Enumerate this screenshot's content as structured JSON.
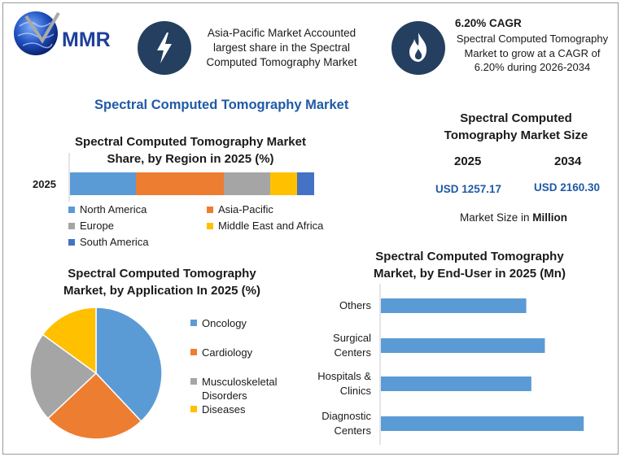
{
  "logo": {
    "text": "MMR"
  },
  "banner": {
    "asia_text_lines": [
      "Asia-Pacific Market Accounted",
      "largest share in the Spectral",
      "Computed Tomography Market"
    ],
    "cagr_title": "6.20% CAGR",
    "cagr_text_lines": [
      "Spectral Computed Tomography",
      "Market to grow at a CAGR of",
      "6.20% during 2026-2034"
    ]
  },
  "main_title": "Spectral Computed Tomography Market",
  "market_size": {
    "title_lines": [
      "Spectral Computed",
      "Tomography Market Size"
    ],
    "year_a": "2025",
    "year_b": "2034",
    "value_a": "USD 1257.17",
    "value_b": "USD 2160.30",
    "unit_note_prefix": "Market Size in ",
    "unit_note_bold": "Million"
  },
  "chart_data": [
    {
      "type": "bar",
      "orientation": "horizontal-stacked",
      "title": "Spectral Computed Tomography Market Share, by Region in 2025 (%)",
      "categories": [
        "2025"
      ],
      "series": [
        {
          "name": "North America",
          "values": [
            27
          ],
          "color": "#5b9bd5"
        },
        {
          "name": "Asia-Pacific",
          "values": [
            36
          ],
          "color": "#ed7d31"
        },
        {
          "name": "Europe",
          "values": [
            19
          ],
          "color": "#a5a5a5"
        },
        {
          "name": "Middle East and Africa",
          "values": [
            11
          ],
          "color": "#ffc000"
        },
        {
          "name": "South America",
          "values": [
            7
          ],
          "color": "#4472c4"
        }
      ],
      "xlim": [
        0,
        100
      ],
      "legend_position": "bottom"
    },
    {
      "type": "pie",
      "title": "Spectral Computed Tomography Market, by Application In 2025 (%)",
      "slices": [
        {
          "name": "Oncology",
          "value": 38,
          "color": "#5b9bd5"
        },
        {
          "name": "Cardiology",
          "value": 25,
          "color": "#ed7d31"
        },
        {
          "name": "Musculoskeletal Disorders",
          "value": 22,
          "color": "#a5a5a5"
        },
        {
          "name": "Diseases",
          "value": 15,
          "color": "#ffc000"
        }
      ],
      "legend_position": "right"
    },
    {
      "type": "bar",
      "orientation": "horizontal",
      "title": "Spectral Computed Tomography Market, by End-User in 2025 (Mn)",
      "categories": [
        "Others",
        "Surgical Centers",
        "Hospitals & Clinics",
        "Diagnostic Centers"
      ],
      "category_label_lines": [
        [
          "Others"
        ],
        [
          "Surgical",
          "Centers"
        ],
        [
          "Hospitals &",
          "Clinics"
        ],
        [
          "Diagnostic",
          "Centers"
        ]
      ],
      "values": [
        172,
        194,
        178,
        240
      ],
      "color": "#5b9bd5",
      "xlim": [
        0,
        260
      ]
    }
  ]
}
